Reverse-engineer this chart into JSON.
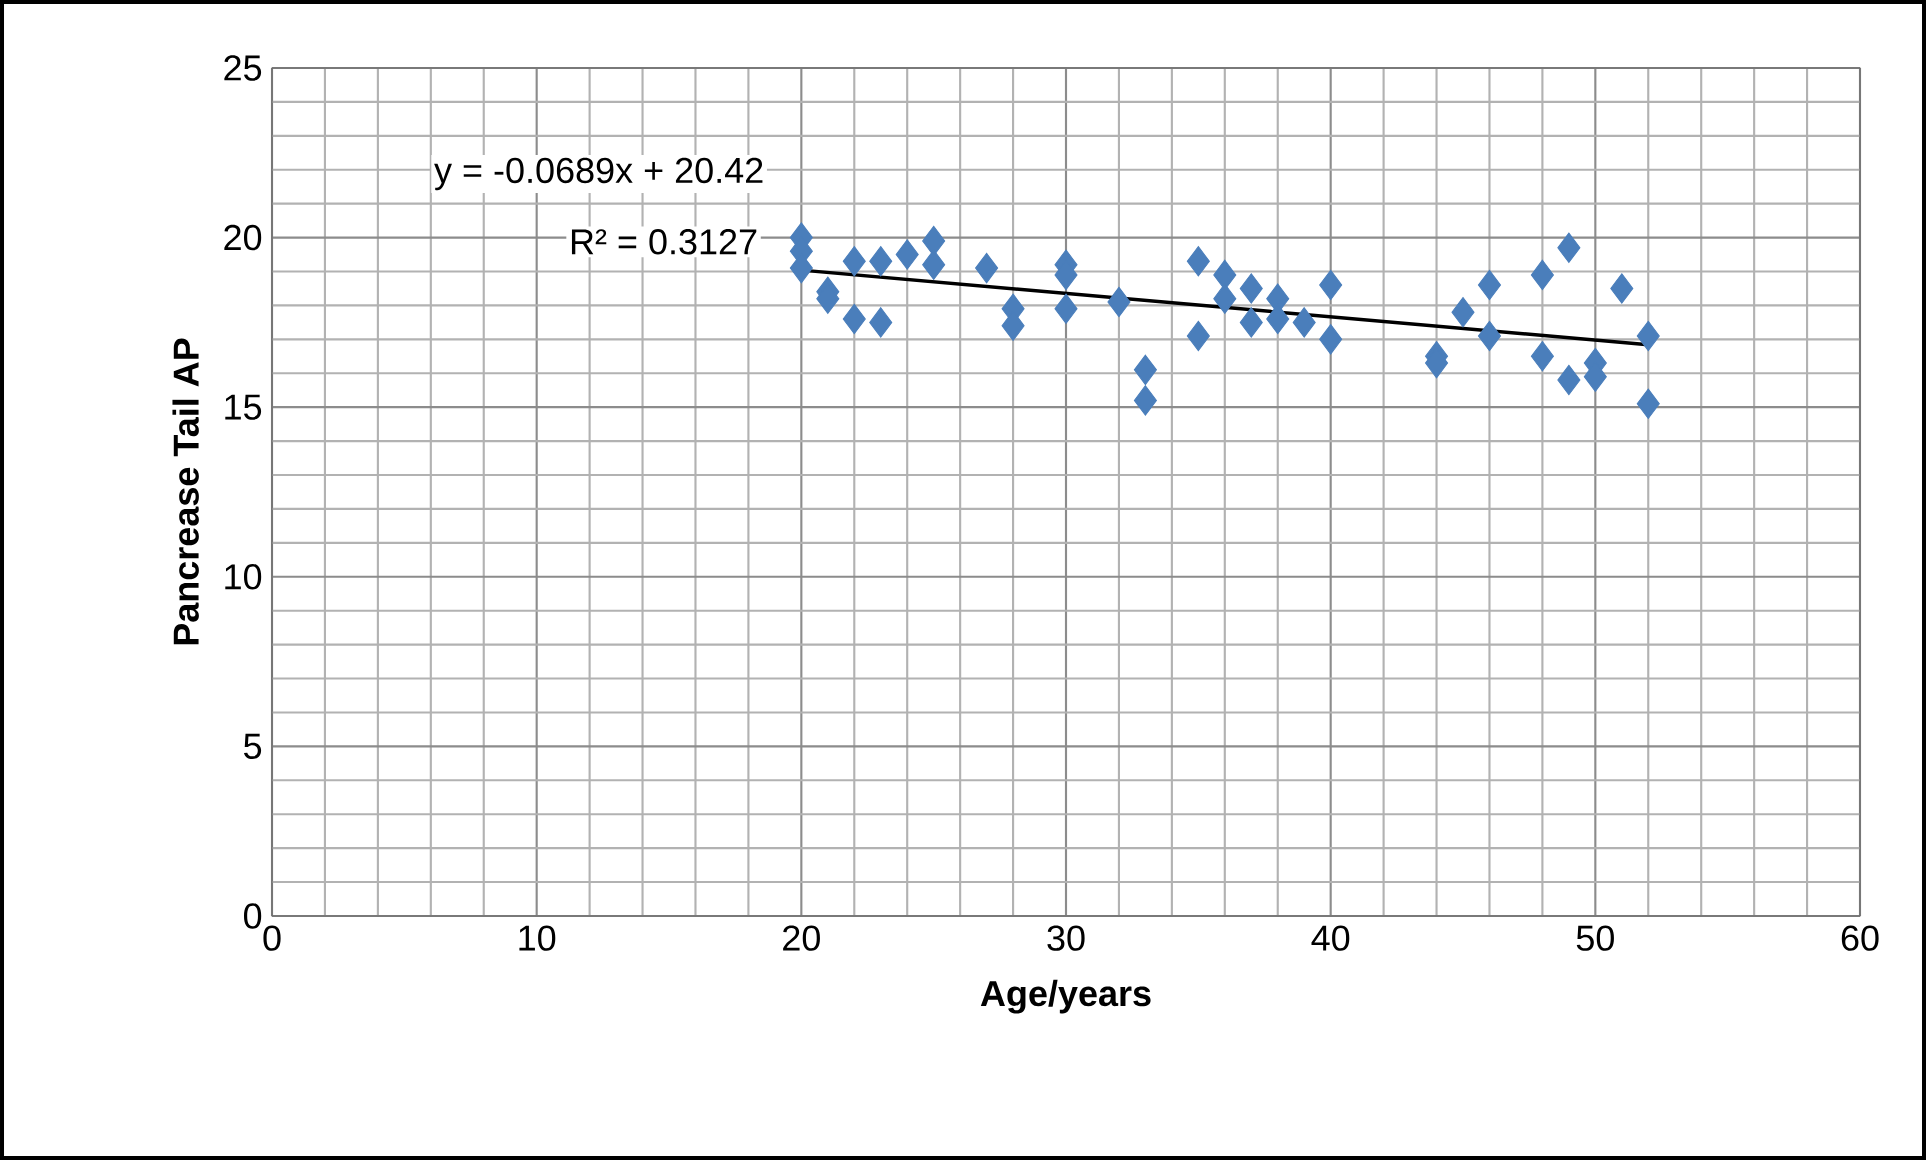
{
  "chart_data": {
    "type": "scatter",
    "xlabel": "Age/years",
    "ylabel": "Pancrease Tail AP",
    "xlim": [
      0,
      60
    ],
    "xticks": [
      0,
      10,
      20,
      30,
      40,
      50,
      60
    ],
    "ylim": [
      0,
      25
    ],
    "yticks": [
      0,
      5,
      10,
      15,
      20,
      25
    ],
    "grid": true,
    "marker": "diamond",
    "annotations": [
      "y = -0.0689x + 20.42",
      "R² = 0.3127"
    ],
    "series": [
      {
        "color": "#4a7ebb",
        "x": [
          20,
          20,
          20,
          21,
          21,
          22,
          22,
          23,
          23,
          24,
          25,
          25,
          27,
          28,
          28,
          30,
          30,
          30,
          32,
          33,
          33,
          35,
          35,
          36,
          36,
          37,
          37,
          38,
          38,
          39,
          40,
          40,
          44,
          44,
          45,
          46,
          46,
          48,
          48,
          49,
          49,
          50,
          50,
          51,
          52,
          52
        ],
        "values": [
          20.0,
          19.6,
          19.1,
          18.4,
          18.2,
          19.3,
          17.6,
          19.3,
          17.5,
          19.5,
          19.9,
          19.2,
          19.1,
          17.9,
          17.4,
          19.2,
          18.9,
          17.9,
          18.1,
          16.1,
          15.2,
          19.3,
          17.1,
          18.9,
          18.2,
          18.5,
          17.5,
          18.2,
          17.6,
          17.5,
          18.6,
          17.0,
          16.5,
          16.3,
          17.8,
          18.6,
          17.1,
          18.9,
          16.5,
          19.7,
          15.8,
          16.3,
          15.9,
          18.5,
          17.1,
          15.1
        ]
      },
      {
        "type": "line",
        "color": "#000000",
        "marker": "none",
        "line_style": "solid",
        "x": [
          20,
          52
        ],
        "values": [
          19.04,
          16.84
        ]
      }
    ]
  }
}
